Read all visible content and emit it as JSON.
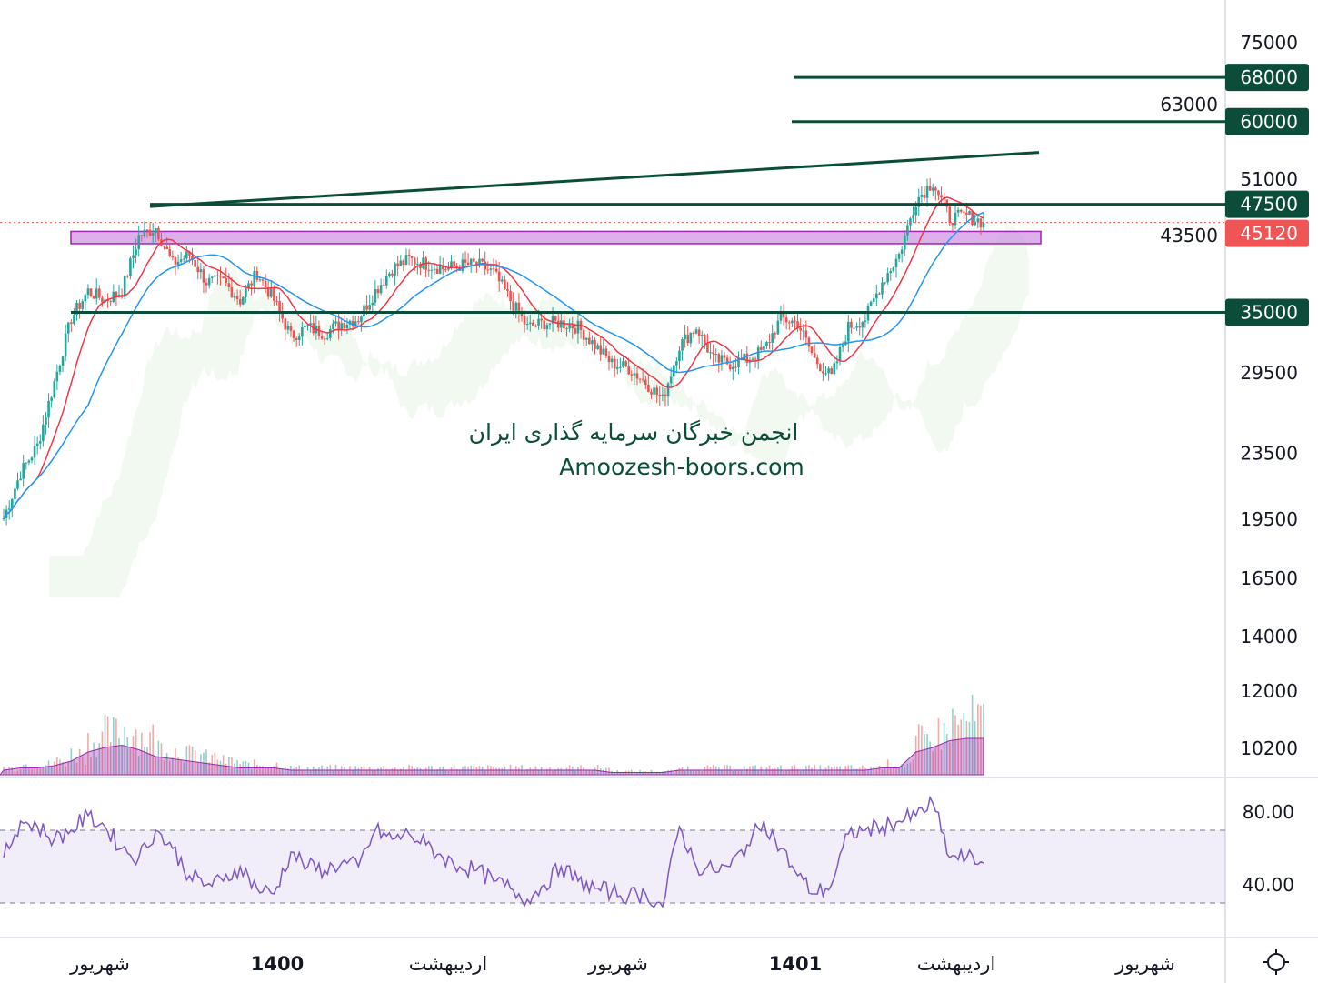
{
  "chart_data": {
    "type": "candlestick",
    "scale": "log",
    "price_axis_ticks": [
      "75000",
      "63000",
      "51000",
      "43500",
      "29500",
      "23500",
      "19500",
      "16500",
      "14000",
      "12000",
      "10200"
    ],
    "time_axis_labels": [
      "شهریور",
      "1400",
      "اردیبهشت",
      "شهریور",
      "1401",
      "اردیبهشت",
      "شهریور"
    ],
    "closes": [
      19560,
      22230,
      24010,
      28730,
      34410,
      37180,
      36220,
      37180,
      43380,
      44490,
      40130,
      41190,
      38150,
      38150,
      36220,
      39130,
      36220,
      32700,
      33550,
      33000,
      33970,
      34410,
      37180,
      39620,
      40660,
      40130,
      39620,
      39960,
      40130,
      39130,
      36220,
      33550,
      33970,
      33970,
      33550,
      31870,
      30280,
      29880,
      28730,
      27310,
      31870,
      33550,
      30640,
      30280,
      30640,
      31450,
      34410,
      33970,
      30640,
      29120,
      33550,
      34410,
      38150,
      41190,
      48070,
      50610,
      45670,
      46000,
      45120
    ],
    "last_price": "45120",
    "levels": [
      {
        "label": "68000",
        "value": 68000,
        "color": "#0b4d3a"
      },
      {
        "label": "60000",
        "value": 60000,
        "color": "#0b4d3a"
      },
      {
        "label": "47500",
        "value": 47500,
        "color": "#0b4d3a"
      },
      {
        "label": "35000",
        "value": 35000,
        "color": "#0b4d3a"
      }
    ],
    "trendline": {
      "from": 47200,
      "to": 55000,
      "color": "#0b4d3a"
    },
    "zone": {
      "low": 42500,
      "high": 44000,
      "color": "#c77be0"
    },
    "volume": [
      2,
      3,
      3,
      4,
      6,
      10,
      12,
      13,
      11,
      8,
      7,
      6,
      5,
      4,
      3,
      3,
      3,
      2,
      2,
      2,
      2,
      2,
      2,
      2,
      2,
      2,
      2,
      2,
      2,
      2,
      2,
      2,
      2,
      2,
      2,
      2,
      1,
      1,
      1,
      1,
      2,
      2,
      2,
      2,
      2,
      2,
      2,
      2,
      2,
      2,
      2,
      2,
      3,
      3,
      10,
      12,
      15,
      16,
      16
    ],
    "rsi": {
      "ticks": [
        "80.00",
        "40.00"
      ],
      "upper": 70,
      "lower": 30,
      "values": [
        55,
        75,
        72,
        65,
        70,
        78,
        72,
        60,
        55,
        70,
        60,
        45,
        40,
        42,
        50,
        38,
        35,
        58,
        50,
        48,
        52,
        50,
        70,
        65,
        68,
        62,
        55,
        50,
        48,
        42,
        38,
        32,
        40,
        50,
        42,
        38,
        36,
        34,
        35,
        28,
        72,
        50,
        48,
        50,
        62,
        75,
        60,
        45,
        35,
        40,
        68,
        70,
        72,
        75,
        78,
        85,
        55,
        55,
        52
      ]
    },
    "colors": {
      "up": "#26a69a",
      "down": "#ef5350",
      "ma_fast": "#f23645",
      "ma_slow": "#2196f3",
      "rsi": "#7e57c2",
      "last": "#f05454"
    }
  },
  "watermark": {
    "line1": "انجمن خبرگان سرمایه گذاری ایران",
    "line2": "Amoozesh-boors.com"
  },
  "settings_icon": "gear-icon"
}
